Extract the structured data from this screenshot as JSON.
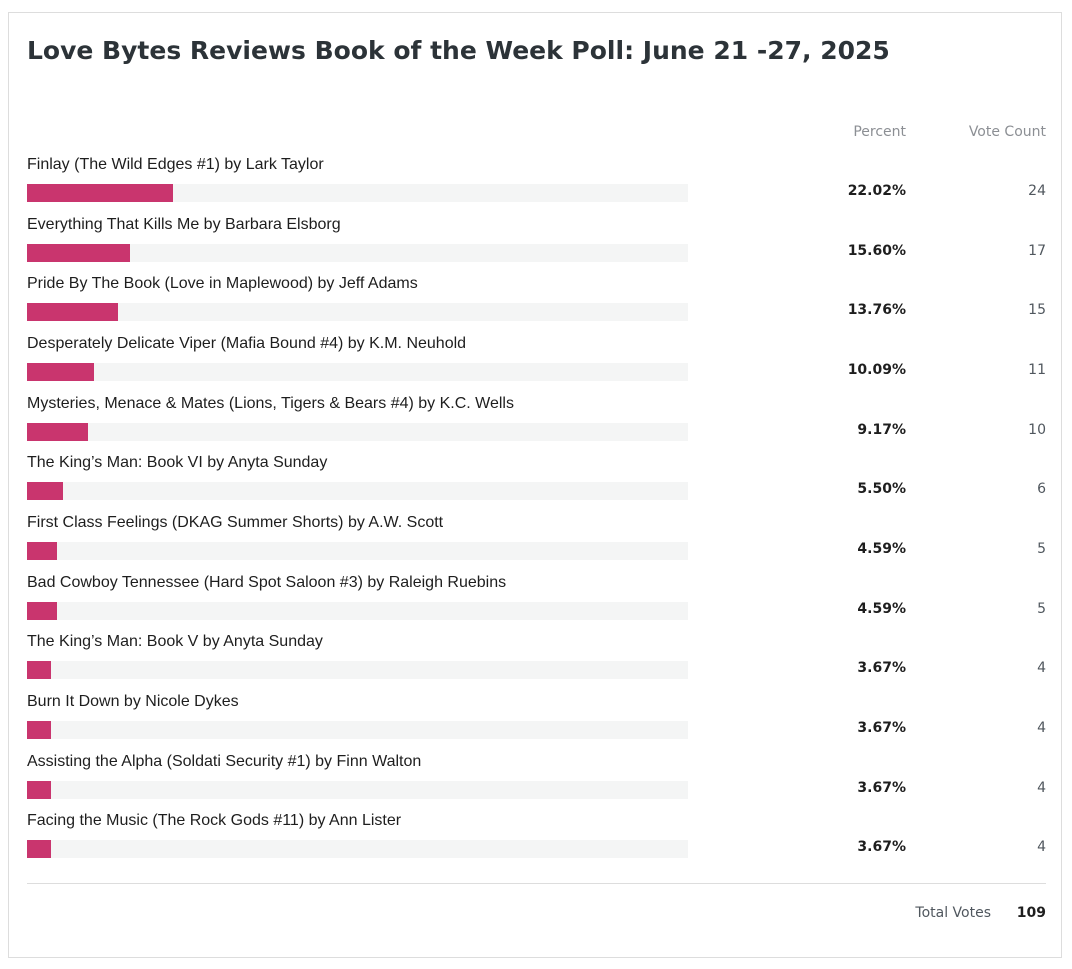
{
  "title": "Love Bytes Reviews Book of the Week Poll: June 21 -27, 2025",
  "columns": {
    "percent": "Percent",
    "votes": "Vote Count"
  },
  "percent_range": [
    0,
    100
  ],
  "bar_color": "#c9356e",
  "options": [
    {
      "label": "Finlay (The Wild Edges #1) by Lark Taylor",
      "percent": 22.02,
      "percent_label": "22.02%",
      "votes": 24
    },
    {
      "label": "Everything That Kills Me by Barbara Elsborg",
      "percent": 15.6,
      "percent_label": "15.60%",
      "votes": 17
    },
    {
      "label": "Pride By The Book (Love in Maplewood) by Jeff Adams",
      "percent": 13.76,
      "percent_label": "13.76%",
      "votes": 15
    },
    {
      "label": "Desperately Delicate Viper (Mafia Bound #4) by K.M. Neuhold",
      "percent": 10.09,
      "percent_label": "10.09%",
      "votes": 11
    },
    {
      "label": "Mysteries, Menace & Mates (Lions, Tigers & Bears #4) by K.C. Wells",
      "percent": 9.17,
      "percent_label": "9.17%",
      "votes": 10
    },
    {
      "label": "The King’s Man: Book VI by Anyta Sunday",
      "percent": 5.5,
      "percent_label": "5.50%",
      "votes": 6
    },
    {
      "label": "First Class Feelings (DKAG Summer Shorts) by A.W. Scott",
      "percent": 4.59,
      "percent_label": "4.59%",
      "votes": 5
    },
    {
      "label": "Bad Cowboy Tennessee (Hard Spot Saloon #3) by Raleigh Ruebins",
      "percent": 4.59,
      "percent_label": "4.59%",
      "votes": 5
    },
    {
      "label": "The King’s Man: Book V by Anyta Sunday",
      "percent": 3.67,
      "percent_label": "3.67%",
      "votes": 4
    },
    {
      "label": "Burn It Down by Nicole Dykes",
      "percent": 3.67,
      "percent_label": "3.67%",
      "votes": 4
    },
    {
      "label": "Assisting the Alpha (Soldati Security #1) by Finn Walton",
      "percent": 3.67,
      "percent_label": "3.67%",
      "votes": 4
    },
    {
      "label": "Facing the Music (The Rock Gods #11) by Ann Lister",
      "percent": 3.67,
      "percent_label": "3.67%",
      "votes": 4
    }
  ],
  "total": {
    "label": "Total Votes",
    "value": 109
  }
}
